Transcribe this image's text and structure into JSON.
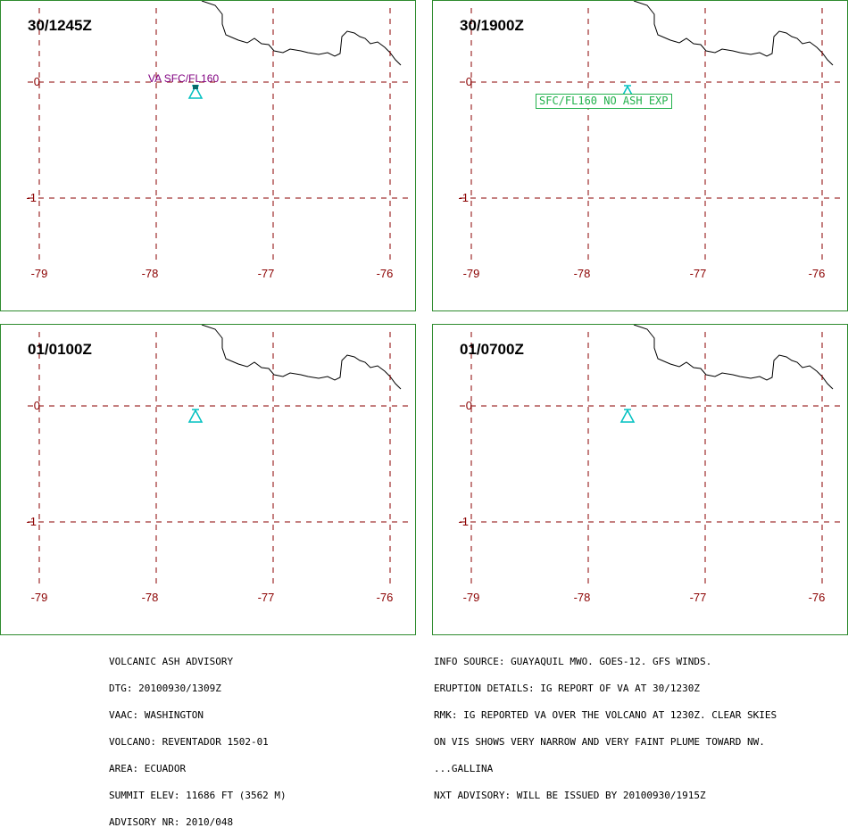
{
  "panels": [
    {
      "title": "30/1245Z",
      "annotation": "VA SFC/FL160",
      "annotation_style": "purple"
    },
    {
      "title": "30/1900Z",
      "annotation": "SFC/FL160  NO  ASH  EXP",
      "annotation_style": "green-box"
    },
    {
      "title": "01/0100Z",
      "annotation": "",
      "annotation_style": "none"
    },
    {
      "title": "01/0700Z",
      "annotation": "",
      "annotation_style": "none"
    }
  ],
  "axes": {
    "lon_ticks": [
      "-79",
      "-78",
      "-77",
      "-76"
    ],
    "lat_ticks": [
      "0",
      "-1"
    ]
  },
  "colors": {
    "panel_border": "#2e8b2e",
    "grid": "#8b0000",
    "tick_labels": "#8b0000",
    "volcano_symbol": "#00c0c0",
    "coastline": "#000000",
    "annotation_purple": "#800080",
    "annotation_green": "#22b14c"
  },
  "icons": {
    "volcano": "volcano-triangle-icon"
  },
  "footer_left": [
    "VOLCANIC ASH ADVISORY",
    "DTG: 20100930/1309Z",
    "VAAC: WASHINGTON",
    "VOLCANO: REVENTADOR 1502-01",
    "AREA: ECUADOR",
    "SUMMIT ELEV: 11686 FT (3562 M)",
    "ADVISORY NR: 2010/048"
  ],
  "footer_right": [
    "INFO SOURCE: GUAYAQUIL MWO. GOES-12. GFS WINDS.",
    "ERUPTION DETAILS: IG REPORT OF VA AT 30/1230Z",
    "RMK: IG REPORTED VA OVER THE VOLCANO AT 1230Z. CLEAR SKIES",
    "ON VIS SHOWS VERY NARROW AND VERY FAINT PLUME TOWARD NW.",
    "...GALLINA",
    "NXT ADVISORY: WILL BE ISSUED BY 20100930/1915Z"
  ]
}
